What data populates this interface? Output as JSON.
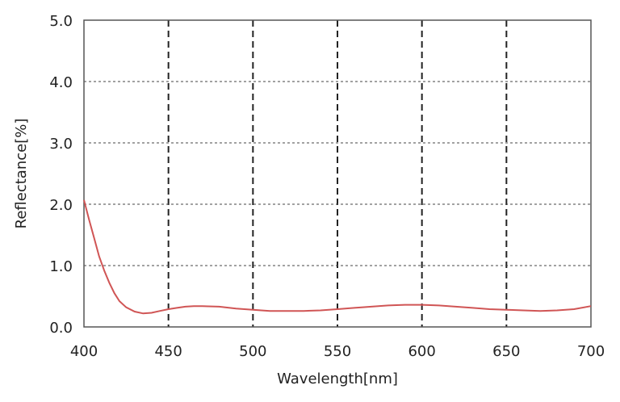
{
  "chart_data": {
    "type": "line",
    "title": "",
    "xlabel": "Wavelength[nm]",
    "ylabel": "Reflectance[%]",
    "xlim": [
      400,
      700
    ],
    "ylim": [
      0,
      5
    ],
    "grid": true,
    "x_ticks": [
      "400",
      "450",
      "500",
      "550",
      "600",
      "650",
      "700"
    ],
    "y_ticks": [
      "0.0",
      "1.0",
      "2.0",
      "3.0",
      "4.0",
      "5.0"
    ],
    "series": [
      {
        "name": "Reflectance",
        "color": "#d05555",
        "x": [
          400,
          403,
          406,
          409,
          412,
          415,
          418,
          421,
          425,
          430,
          435,
          440,
          445,
          450,
          455,
          460,
          465,
          470,
          480,
          490,
          500,
          510,
          520,
          530,
          540,
          550,
          560,
          570,
          580,
          590,
          600,
          610,
          620,
          630,
          640,
          650,
          660,
          670,
          680,
          690,
          700
        ],
        "y": [
          2.07,
          1.75,
          1.45,
          1.15,
          0.92,
          0.72,
          0.55,
          0.42,
          0.32,
          0.25,
          0.22,
          0.23,
          0.26,
          0.29,
          0.31,
          0.33,
          0.34,
          0.34,
          0.33,
          0.3,
          0.28,
          0.26,
          0.26,
          0.26,
          0.27,
          0.29,
          0.31,
          0.33,
          0.35,
          0.36,
          0.36,
          0.35,
          0.33,
          0.31,
          0.29,
          0.28,
          0.27,
          0.26,
          0.27,
          0.29,
          0.34
        ]
      }
    ]
  }
}
